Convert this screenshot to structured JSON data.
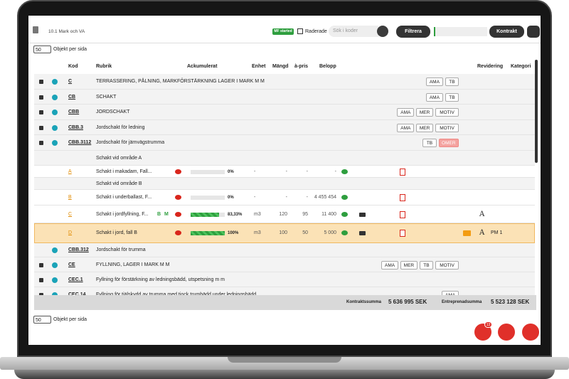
{
  "header": {
    "title": "10.1 Mark och VA",
    "badge": "MF started",
    "deleted_label": "Raderade",
    "search_placeholder": "Sök i koder",
    "filter_button": "Filtrera",
    "contract_button": "Kontrakt"
  },
  "pager_top": {
    "size": "50",
    "label": "Objekt per sida"
  },
  "pager_bottom": {
    "size": "50",
    "label": "Objekt per sida"
  },
  "table": {
    "columns": [
      "Kod",
      "Rubrik",
      "Ackumulerat",
      "Enhet",
      "Mängd",
      "à-pris",
      "Belopp",
      "Revidering",
      "Kategori"
    ],
    "rows": [
      {
        "kod": "C",
        "rubrik": "TERRASSERING, PÅLNING, MARKFÖRSTÄRKNING LAGER I MARK M M",
        "tags": [
          "AMA",
          "TB"
        ]
      },
      {
        "kod": "CB",
        "rubrik": "SCHAKT",
        "tags": [
          "AMA",
          "TB"
        ]
      },
      {
        "kod": "CBB",
        "rubrik": "JORDSCHAKT",
        "tags": [
          "AMA",
          "MER",
          "MOTIV"
        ]
      },
      {
        "kod": "CBB.3",
        "rubrik": "Jordschakt för ledning",
        "tags": [
          "AMA",
          "MER",
          "MOTIV"
        ]
      },
      {
        "kod": "CBB.3112",
        "rubrik": "Jordschakt för järnvägstrumma",
        "tags": [
          "TB",
          "OMER"
        ]
      },
      {
        "rubrik": "Schakt vid område A"
      },
      {
        "kod": "A",
        "rubrik": "Schakt i makadam, Fall...",
        "progress": 0,
        "progress_label": "0%",
        "enhet": "-",
        "mangd": "-",
        "a_pris": "-",
        "belopp": "-"
      },
      {
        "rubrik": "Schakt vid område B"
      },
      {
        "kod": "B",
        "rubrik": "Schakt i underballast, F...",
        "progress": 0,
        "progress_label": "0%",
        "enhet": "-",
        "mangd": "-",
        "a_pris": "-",
        "belopp": "4 455 454"
      },
      {
        "kod": "C",
        "rubrik": "Schakt i jordfyllning, F...",
        "flags": [
          "B",
          "M"
        ],
        "progress": 83.33,
        "progress_label": "83,33%",
        "enhet": "m3",
        "mangd": "120",
        "a_pris": "95",
        "belopp": "11 400",
        "revidering": "A"
      },
      {
        "kod": "D",
        "rubrik": "Schakt i jord, fall B",
        "progress": 100,
        "progress_label": "100%",
        "enhet": "m3",
        "mangd": "100",
        "a_pris": "50",
        "belopp": "5 000",
        "revidering": "A",
        "kategori": "PM 1"
      },
      {
        "kod": "CBB.312",
        "rubrik": "Jordschakt för trumma"
      },
      {
        "kod": "CE",
        "rubrik": "FYLLNING, LAGER I MARK M M",
        "tags": [
          "AMA",
          "MER",
          "TB",
          "MOTIV"
        ]
      },
      {
        "kod": "CEC.1",
        "rubrik": "Fyllning för förstärkning av ledningsbädd, utspetsning m m"
      },
      {
        "kod": "CEC.14",
        "rubrik": "Fyllning för tjälskydd av trumma med tjock trumbädd under ledningsbädd",
        "tags": [
          "AMA"
        ]
      }
    ]
  },
  "footer": {
    "contract_label": "Kontraktssumma",
    "contract_sum": "5 636 995 SEK",
    "contractor_label": "Entreprenadsumma",
    "contractor_sum": "5 523 128 SEK"
  },
  "notifications": {
    "count": "13"
  }
}
